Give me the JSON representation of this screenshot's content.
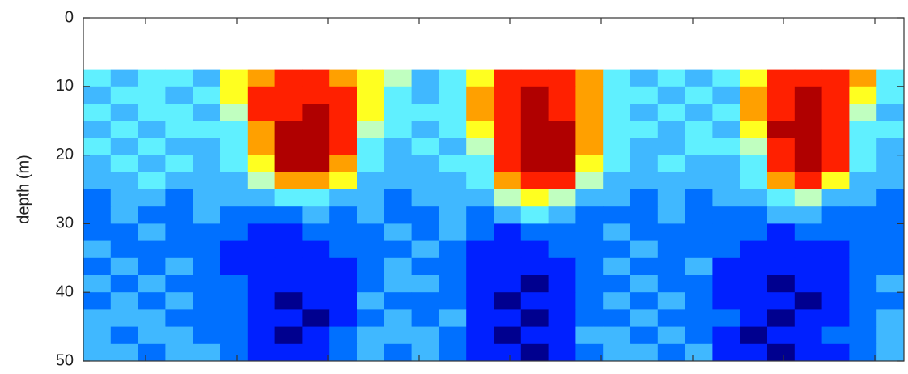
{
  "chart_data": {
    "type": "heatmap",
    "ylabel": "depth (m)",
    "ylim": [
      0,
      50
    ],
    "yticks": [
      0,
      10,
      20,
      30,
      40,
      50
    ],
    "y_reversed": true,
    "depth_bins": [
      7.5,
      10,
      12.5,
      15,
      17.5,
      20,
      22.5,
      25,
      27.5,
      30,
      32.5,
      35,
      37.5,
      40,
      42.5,
      45,
      47.5,
      50
    ],
    "clim": [
      0,
      9
    ],
    "colormap": [
      "#00008f",
      "#0020ff",
      "#0070ff",
      "#40b8ff",
      "#60f0ff",
      "#c0ffc0",
      "#ffff20",
      "#ffa000",
      "#ff2000",
      "#b00000"
    ],
    "z": [
      [
        4,
        3,
        4,
        4,
        3,
        6,
        7,
        8,
        8,
        7,
        6,
        5,
        3,
        4,
        6,
        8,
        8,
        8,
        7,
        4,
        3,
        4,
        3,
        4,
        6,
        8,
        8,
        8,
        7,
        4
      ],
      [
        3,
        4,
        4,
        3,
        4,
        6,
        8,
        8,
        8,
        8,
        6,
        4,
        3,
        4,
        7,
        8,
        9,
        8,
        7,
        4,
        4,
        3,
        4,
        3,
        7,
        8,
        9,
        8,
        6,
        4
      ],
      [
        4,
        3,
        4,
        4,
        3,
        5,
        8,
        8,
        9,
        8,
        6,
        4,
        4,
        4,
        7,
        8,
        9,
        8,
        7,
        4,
        3,
        4,
        3,
        4,
        7,
        8,
        9,
        8,
        5,
        3
      ],
      [
        3,
        4,
        3,
        4,
        4,
        4,
        7,
        9,
        9,
        8,
        5,
        4,
        3,
        4,
        6,
        8,
        9,
        9,
        7,
        4,
        4,
        3,
        4,
        3,
        6,
        9,
        9,
        8,
        4,
        4
      ],
      [
        4,
        3,
        4,
        3,
        3,
        4,
        7,
        9,
        9,
        8,
        4,
        3,
        4,
        3,
        5,
        8,
        9,
        9,
        7,
        4,
        3,
        3,
        4,
        4,
        5,
        8,
        9,
        8,
        4,
        3
      ],
      [
        3,
        4,
        3,
        4,
        3,
        4,
        6,
        9,
        9,
        7,
        4,
        3,
        3,
        4,
        4,
        8,
        9,
        9,
        6,
        4,
        3,
        4,
        3,
        3,
        4,
        8,
        9,
        8,
        4,
        3
      ],
      [
        3,
        3,
        4,
        3,
        3,
        3,
        5,
        7,
        7,
        6,
        3,
        3,
        3,
        3,
        4,
        7,
        8,
        8,
        5,
        3,
        3,
        3,
        3,
        3,
        4,
        7,
        8,
        6,
        3,
        3
      ],
      [
        2,
        3,
        3,
        2,
        3,
        3,
        3,
        4,
        4,
        3,
        3,
        2,
        3,
        3,
        3,
        5,
        6,
        5,
        3,
        3,
        2,
        3,
        2,
        3,
        3,
        4,
        5,
        3,
        3,
        2
      ],
      [
        2,
        3,
        2,
        2,
        3,
        2,
        2,
        2,
        3,
        2,
        3,
        2,
        2,
        3,
        2,
        3,
        4,
        3,
        2,
        2,
        2,
        3,
        2,
        2,
        2,
        3,
        3,
        2,
        2,
        2
      ],
      [
        2,
        2,
        3,
        2,
        2,
        2,
        1,
        1,
        2,
        2,
        2,
        3,
        2,
        3,
        2,
        1,
        2,
        2,
        2,
        3,
        2,
        2,
        2,
        2,
        2,
        1,
        2,
        2,
        2,
        2
      ],
      [
        3,
        2,
        2,
        2,
        2,
        1,
        1,
        1,
        1,
        2,
        2,
        2,
        3,
        2,
        1,
        1,
        1,
        2,
        2,
        2,
        3,
        2,
        2,
        2,
        1,
        1,
        1,
        1,
        2,
        2
      ],
      [
        2,
        3,
        2,
        3,
        2,
        1,
        1,
        1,
        1,
        1,
        2,
        3,
        2,
        2,
        1,
        1,
        1,
        1,
        2,
        3,
        2,
        2,
        3,
        1,
        1,
        1,
        1,
        1,
        2,
        2
      ],
      [
        3,
        2,
        3,
        2,
        2,
        2,
        1,
        1,
        1,
        1,
        2,
        3,
        3,
        2,
        1,
        1,
        0,
        1,
        2,
        2,
        3,
        2,
        2,
        1,
        1,
        0,
        1,
        1,
        2,
        3
      ],
      [
        2,
        3,
        2,
        3,
        2,
        2,
        1,
        0,
        1,
        1,
        3,
        2,
        2,
        2,
        1,
        0,
        1,
        1,
        2,
        3,
        2,
        3,
        2,
        1,
        1,
        1,
        0,
        1,
        2,
        2
      ],
      [
        3,
        3,
        3,
        2,
        2,
        2,
        1,
        1,
        0,
        1,
        2,
        3,
        2,
        3,
        1,
        1,
        0,
        1,
        2,
        2,
        3,
        2,
        2,
        2,
        1,
        0,
        1,
        1,
        2,
        3
      ],
      [
        3,
        2,
        3,
        3,
        2,
        2,
        1,
        0,
        1,
        2,
        3,
        3,
        3,
        2,
        1,
        0,
        1,
        1,
        3,
        3,
        2,
        3,
        2,
        1,
        0,
        1,
        1,
        2,
        2,
        3
      ],
      [
        3,
        3,
        2,
        3,
        3,
        2,
        1,
        1,
        1,
        2,
        3,
        2,
        3,
        2,
        1,
        1,
        0,
        1,
        2,
        3,
        3,
        2,
        3,
        1,
        1,
        0,
        1,
        1,
        2,
        3
      ]
    ]
  }
}
